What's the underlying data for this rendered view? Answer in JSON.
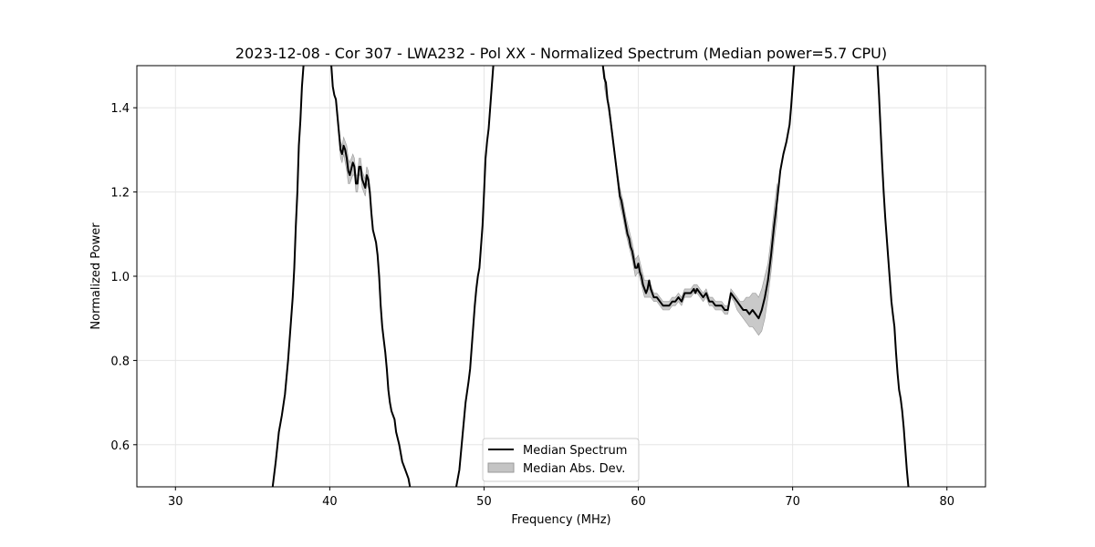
{
  "chart_data": {
    "type": "line",
    "title": "2023-12-08 - Cor 307 - LWA232 - Pol XX - Normalized Spectrum (Median power=5.7 CPU)",
    "xlabel": "Frequency (MHz)",
    "ylabel": "Normalized Power",
    "xlim": [
      27.5,
      82.5
    ],
    "ylim": [
      0.5,
      1.5
    ],
    "xticks": [
      30,
      40,
      50,
      60,
      70,
      80
    ],
    "xtick_labels": [
      "30",
      "40",
      "50",
      "60",
      "70",
      "80"
    ],
    "yticks": [
      0.6,
      0.8,
      1.0,
      1.2,
      1.4
    ],
    "ytick_labels": [
      "0.6",
      "0.8",
      "1.0",
      "1.2",
      "1.4"
    ],
    "grid": true,
    "legend_position": "bottom-center",
    "colors": {
      "line": "#000000",
      "band": "#bfbfbf",
      "grid": "#e6e6e6"
    },
    "series": [
      {
        "name": "Median Spectrum",
        "kind": "line",
        "segments": [
          [
            [
              36.3,
              0.5
            ],
            [
              36.5,
              0.56
            ],
            [
              36.7,
              0.63
            ],
            [
              36.9,
              0.67
            ],
            [
              37.1,
              0.72
            ],
            [
              37.3,
              0.8
            ],
            [
              37.5,
              0.9
            ],
            [
              37.6,
              0.95
            ],
            [
              37.7,
              1.02
            ],
            [
              37.8,
              1.12
            ],
            [
              37.9,
              1.2
            ],
            [
              38.0,
              1.31
            ],
            [
              38.1,
              1.37
            ],
            [
              38.2,
              1.45
            ],
            [
              38.3,
              1.5
            ]
          ],
          [
            [
              40.1,
              1.5
            ],
            [
              40.2,
              1.45
            ],
            [
              40.3,
              1.43
            ],
            [
              40.4,
              1.42
            ],
            [
              40.5,
              1.38
            ],
            [
              40.6,
              1.34
            ],
            [
              40.7,
              1.3
            ],
            [
              40.8,
              1.29
            ],
            [
              40.9,
              1.31
            ],
            [
              41.0,
              1.3
            ],
            [
              41.1,
              1.28
            ],
            [
              41.2,
              1.25
            ],
            [
              41.3,
              1.24
            ],
            [
              41.5,
              1.27
            ],
            [
              41.6,
              1.26
            ],
            [
              41.7,
              1.22
            ],
            [
              41.8,
              1.22
            ],
            [
              41.9,
              1.26
            ],
            [
              42.0,
              1.26
            ],
            [
              42.1,
              1.23
            ],
            [
              42.3,
              1.21
            ],
            [
              42.4,
              1.24
            ],
            [
              42.5,
              1.23
            ],
            [
              42.6,
              1.2
            ],
            [
              42.7,
              1.15
            ],
            [
              42.8,
              1.11
            ],
            [
              43.0,
              1.08
            ],
            [
              43.1,
              1.05
            ],
            [
              43.2,
              1.0
            ],
            [
              43.3,
              0.93
            ],
            [
              43.4,
              0.88
            ],
            [
              43.5,
              0.85
            ],
            [
              43.6,
              0.82
            ],
            [
              43.7,
              0.78
            ],
            [
              43.8,
              0.73
            ],
            [
              43.9,
              0.7
            ],
            [
              44.0,
              0.68
            ],
            [
              44.1,
              0.67
            ],
            [
              44.2,
              0.66
            ],
            [
              44.3,
              0.63
            ],
            [
              44.5,
              0.6
            ],
            [
              44.7,
              0.56
            ],
            [
              44.9,
              0.54
            ],
            [
              45.1,
              0.52
            ],
            [
              45.2,
              0.5
            ]
          ],
          [
            [
              48.2,
              0.5
            ],
            [
              48.4,
              0.54
            ],
            [
              48.6,
              0.62
            ],
            [
              48.8,
              0.7
            ],
            [
              49.0,
              0.75
            ],
            [
              49.1,
              0.78
            ],
            [
              49.2,
              0.83
            ],
            [
              49.3,
              0.88
            ],
            [
              49.4,
              0.93
            ],
            [
              49.5,
              0.97
            ],
            [
              49.6,
              1.0
            ],
            [
              49.7,
              1.02
            ],
            [
              49.8,
              1.07
            ],
            [
              49.9,
              1.12
            ],
            [
              50.0,
              1.2
            ],
            [
              50.1,
              1.28
            ],
            [
              50.2,
              1.32
            ],
            [
              50.3,
              1.35
            ],
            [
              50.4,
              1.4
            ],
            [
              50.5,
              1.45
            ],
            [
              50.6,
              1.5
            ]
          ],
          [
            [
              57.7,
              1.5
            ],
            [
              57.8,
              1.47
            ],
            [
              57.9,
              1.46
            ],
            [
              58.0,
              1.42
            ],
            [
              58.1,
              1.4
            ],
            [
              58.2,
              1.37
            ],
            [
              58.3,
              1.34
            ],
            [
              58.4,
              1.31
            ],
            [
              58.5,
              1.28
            ],
            [
              58.6,
              1.25
            ],
            [
              58.7,
              1.22
            ],
            [
              58.8,
              1.19
            ],
            [
              58.9,
              1.18
            ],
            [
              59.0,
              1.16
            ],
            [
              59.1,
              1.14
            ],
            [
              59.2,
              1.12
            ],
            [
              59.3,
              1.1
            ],
            [
              59.4,
              1.09
            ],
            [
              59.5,
              1.07
            ],
            [
              59.6,
              1.06
            ],
            [
              59.7,
              1.04
            ],
            [
              59.8,
              1.02
            ],
            [
              59.9,
              1.02
            ],
            [
              60.0,
              1.03
            ],
            [
              60.1,
              1.01
            ],
            [
              60.2,
              1.0
            ],
            [
              60.3,
              0.98
            ],
            [
              60.4,
              0.97
            ],
            [
              60.5,
              0.96
            ],
            [
              60.6,
              0.97
            ],
            [
              60.7,
              0.99
            ],
            [
              60.8,
              0.97
            ],
            [
              60.9,
              0.96
            ],
            [
              61.0,
              0.95
            ],
            [
              61.2,
              0.95
            ],
            [
              61.4,
              0.94
            ],
            [
              61.6,
              0.93
            ],
            [
              61.8,
              0.93
            ],
            [
              62.0,
              0.93
            ],
            [
              62.2,
              0.94
            ],
            [
              62.4,
              0.94
            ],
            [
              62.6,
              0.95
            ],
            [
              62.8,
              0.94
            ],
            [
              63.0,
              0.96
            ],
            [
              63.2,
              0.96
            ],
            [
              63.4,
              0.96
            ],
            [
              63.6,
              0.97
            ],
            [
              63.7,
              0.96
            ],
            [
              63.8,
              0.97
            ],
            [
              64.0,
              0.96
            ],
            [
              64.2,
              0.95
            ],
            [
              64.4,
              0.96
            ],
            [
              64.6,
              0.94
            ],
            [
              64.8,
              0.94
            ],
            [
              65.0,
              0.93
            ],
            [
              65.2,
              0.93
            ],
            [
              65.4,
              0.93
            ],
            [
              65.6,
              0.92
            ],
            [
              65.8,
              0.92
            ],
            [
              66.0,
              0.96
            ],
            [
              66.2,
              0.95
            ],
            [
              66.4,
              0.94
            ],
            [
              66.6,
              0.93
            ],
            [
              66.8,
              0.92
            ],
            [
              67.0,
              0.92
            ],
            [
              67.2,
              0.91
            ],
            [
              67.4,
              0.92
            ],
            [
              67.6,
              0.91
            ],
            [
              67.8,
              0.9
            ],
            [
              68.0,
              0.92
            ],
            [
              68.2,
              0.95
            ],
            [
              68.4,
              0.99
            ],
            [
              68.6,
              1.05
            ],
            [
              68.8,
              1.12
            ],
            [
              69.0,
              1.18
            ],
            [
              69.2,
              1.25
            ],
            [
              69.4,
              1.29
            ],
            [
              69.6,
              1.32
            ],
            [
              69.8,
              1.36
            ],
            [
              69.9,
              1.4
            ],
            [
              70.0,
              1.45
            ],
            [
              70.1,
              1.5
            ]
          ],
          [
            [
              75.5,
              1.5
            ],
            [
              75.6,
              1.43
            ],
            [
              75.7,
              1.35
            ],
            [
              75.8,
              1.27
            ],
            [
              75.9,
              1.2
            ],
            [
              76.0,
              1.14
            ],
            [
              76.1,
              1.09
            ],
            [
              76.2,
              1.04
            ],
            [
              76.3,
              0.99
            ],
            [
              76.4,
              0.94
            ],
            [
              76.5,
              0.91
            ],
            [
              76.6,
              0.88
            ],
            [
              76.7,
              0.82
            ],
            [
              76.8,
              0.77
            ],
            [
              76.9,
              0.73
            ],
            [
              77.0,
              0.71
            ],
            [
              77.1,
              0.68
            ],
            [
              77.2,
              0.64
            ],
            [
              77.3,
              0.59
            ],
            [
              77.4,
              0.54
            ],
            [
              77.5,
              0.5
            ]
          ]
        ]
      },
      {
        "name": "Median Abs. Dev.",
        "kind": "band",
        "bands": [
          {
            "x": [
              40.6,
              40.7,
              40.8,
              40.9,
              41.0,
              41.1,
              41.2,
              41.3,
              41.5,
              41.6,
              41.7,
              41.8,
              41.9,
              42.0,
              42.1,
              42.3,
              42.4,
              42.5,
              42.6
            ],
            "lower": [
              1.33,
              1.28,
              1.27,
              1.29,
              1.27,
              1.25,
              1.22,
              1.22,
              1.24,
              1.24,
              1.2,
              1.2,
              1.24,
              1.24,
              1.21,
              1.19,
              1.22,
              1.21,
              1.19
            ],
            "upper": [
              1.35,
              1.32,
              1.31,
              1.33,
              1.32,
              1.31,
              1.28,
              1.27,
              1.29,
              1.28,
              1.24,
              1.24,
              1.28,
              1.28,
              1.25,
              1.23,
              1.26,
              1.25,
              1.21
            ]
          },
          {
            "x": [
              57.8,
              58.0,
              58.2,
              58.4,
              58.6,
              58.8,
              59.0,
              59.2,
              59.4,
              59.6,
              59.8,
              60.0,
              60.2,
              60.4,
              60.6,
              60.8,
              61.0,
              61.2,
              61.4,
              61.6,
              61.8,
              62.0,
              62.2,
              62.4,
              62.6,
              62.8,
              63.0,
              63.2,
              63.4,
              63.6,
              63.8,
              64.0,
              64.2,
              64.4,
              64.6,
              64.8,
              65.0,
              65.2,
              65.4,
              65.6,
              65.8,
              66.0,
              66.2,
              66.4,
              66.6,
              66.8,
              67.0,
              67.2,
              67.4,
              67.6,
              67.8,
              68.0,
              68.2,
              68.4,
              68.6,
              68.8,
              69.0
            ],
            "lower": [
              1.45,
              1.41,
              1.36,
              1.3,
              1.24,
              1.17,
              1.14,
              1.1,
              1.07,
              1.04,
              1.0,
              1.01,
              0.98,
              0.95,
              0.95,
              0.95,
              0.94,
              0.94,
              0.93,
              0.92,
              0.92,
              0.92,
              0.93,
              0.93,
              0.94,
              0.93,
              0.95,
              0.95,
              0.95,
              0.96,
              0.96,
              0.95,
              0.94,
              0.95,
              0.93,
              0.93,
              0.92,
              0.92,
              0.92,
              0.91,
              0.91,
              0.95,
              0.94,
              0.92,
              0.91,
              0.9,
              0.89,
              0.88,
              0.88,
              0.87,
              0.86,
              0.87,
              0.9,
              0.95,
              1.01,
              1.08,
              1.14
            ],
            "upper": [
              1.49,
              1.43,
              1.38,
              1.32,
              1.26,
              1.21,
              1.18,
              1.14,
              1.11,
              1.08,
              1.04,
              1.05,
              1.02,
              0.99,
              0.99,
              0.98,
              0.96,
              0.96,
              0.95,
              0.94,
              0.94,
              0.94,
              0.95,
              0.95,
              0.96,
              0.95,
              0.97,
              0.97,
              0.97,
              0.98,
              0.98,
              0.97,
              0.96,
              0.97,
              0.95,
              0.95,
              0.94,
              0.94,
              0.94,
              0.93,
              0.93,
              0.97,
              0.96,
              0.95,
              0.94,
              0.94,
              0.95,
              0.95,
              0.96,
              0.96,
              0.95,
              0.97,
              1.0,
              1.03,
              1.09,
              1.16,
              1.22
            ]
          }
        ]
      }
    ]
  }
}
